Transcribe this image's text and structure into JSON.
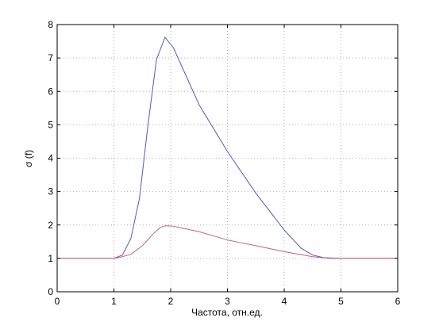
{
  "chart_data": {
    "type": "line",
    "xlabel": "Частота, отн.ед.",
    "ylabel": "σ (f)",
    "xlim": [
      0,
      6
    ],
    "ylim": [
      0,
      8
    ],
    "xticks": [
      "0",
      "1",
      "2",
      "3",
      "4",
      "5",
      "6"
    ],
    "yticks": [
      "0",
      "1",
      "2",
      "3",
      "4",
      "5",
      "6",
      "7",
      "8"
    ],
    "grid": true,
    "series": [
      {
        "color": "#5555cc",
        "x": [
          0,
          0.5,
          1.0,
          1.15,
          1.3,
          1.45,
          1.6,
          1.75,
          1.9,
          2.05,
          2.5,
          3.0,
          3.5,
          4.0,
          4.3,
          4.5,
          4.7,
          5.0,
          5.5,
          6.0
        ],
        "y": [
          1.0,
          1.0,
          1.0,
          1.1,
          1.6,
          2.8,
          5.0,
          6.95,
          7.62,
          7.3,
          5.6,
          4.2,
          2.95,
          1.85,
          1.3,
          1.1,
          1.02,
          1.0,
          1.0,
          1.0
        ]
      },
      {
        "color": "#d06070",
        "x": [
          0,
          0.5,
          1.0,
          1.1,
          1.3,
          1.5,
          1.7,
          1.82,
          1.92,
          2.05,
          2.5,
          3.0,
          3.5,
          4.0,
          4.5,
          4.8,
          5.0,
          5.5,
          6.0
        ],
        "y": [
          1.0,
          1.0,
          1.0,
          1.03,
          1.12,
          1.38,
          1.75,
          1.93,
          1.98,
          1.96,
          1.8,
          1.55,
          1.38,
          1.2,
          1.05,
          1.0,
          1.0,
          1.0,
          1.0
        ]
      }
    ]
  }
}
